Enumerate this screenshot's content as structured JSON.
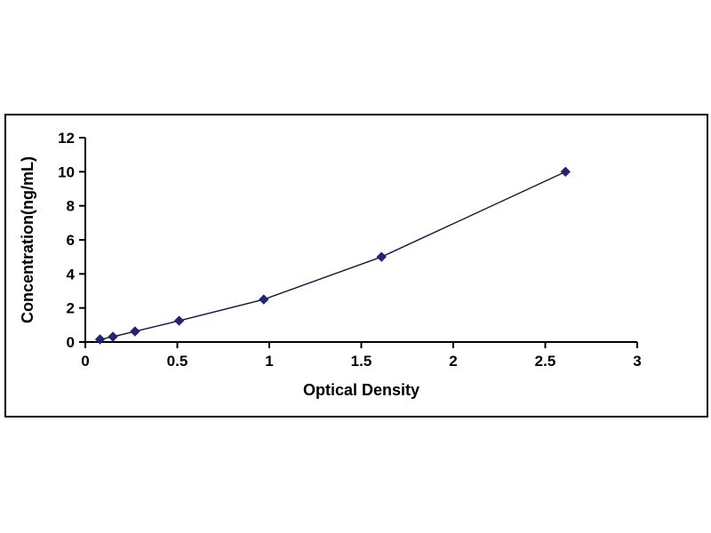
{
  "page": {
    "background_color": "#ffffff"
  },
  "chart_data": {
    "type": "scatter",
    "title": "",
    "xlabel": "Optical Density",
    "ylabel": "Concentration(ng/mL)",
    "x": [
      0.08,
      0.15,
      0.27,
      0.51,
      0.97,
      1.61,
      2.61
    ],
    "y": [
      0.156,
      0.312,
      0.625,
      1.25,
      2.5,
      5.0,
      10.0
    ],
    "xlim": [
      0,
      3
    ],
    "ylim": [
      0,
      12
    ],
    "xticks": [
      0,
      0.5,
      1,
      1.5,
      2,
      2.5,
      3
    ],
    "xtick_labels": [
      "0",
      "0.5",
      "1",
      "1.5",
      "2",
      "2.5",
      "3"
    ],
    "yticks": [
      0,
      2,
      4,
      6,
      8,
      10,
      12
    ],
    "ytick_labels": [
      "0",
      "2",
      "4",
      "6",
      "8",
      "10",
      "12"
    ],
    "grid": false,
    "legend": null,
    "marker": "diamond",
    "line_color": "#14144b",
    "marker_color": "#232378",
    "axis_color": "#000000",
    "frame_color": "#000000"
  }
}
